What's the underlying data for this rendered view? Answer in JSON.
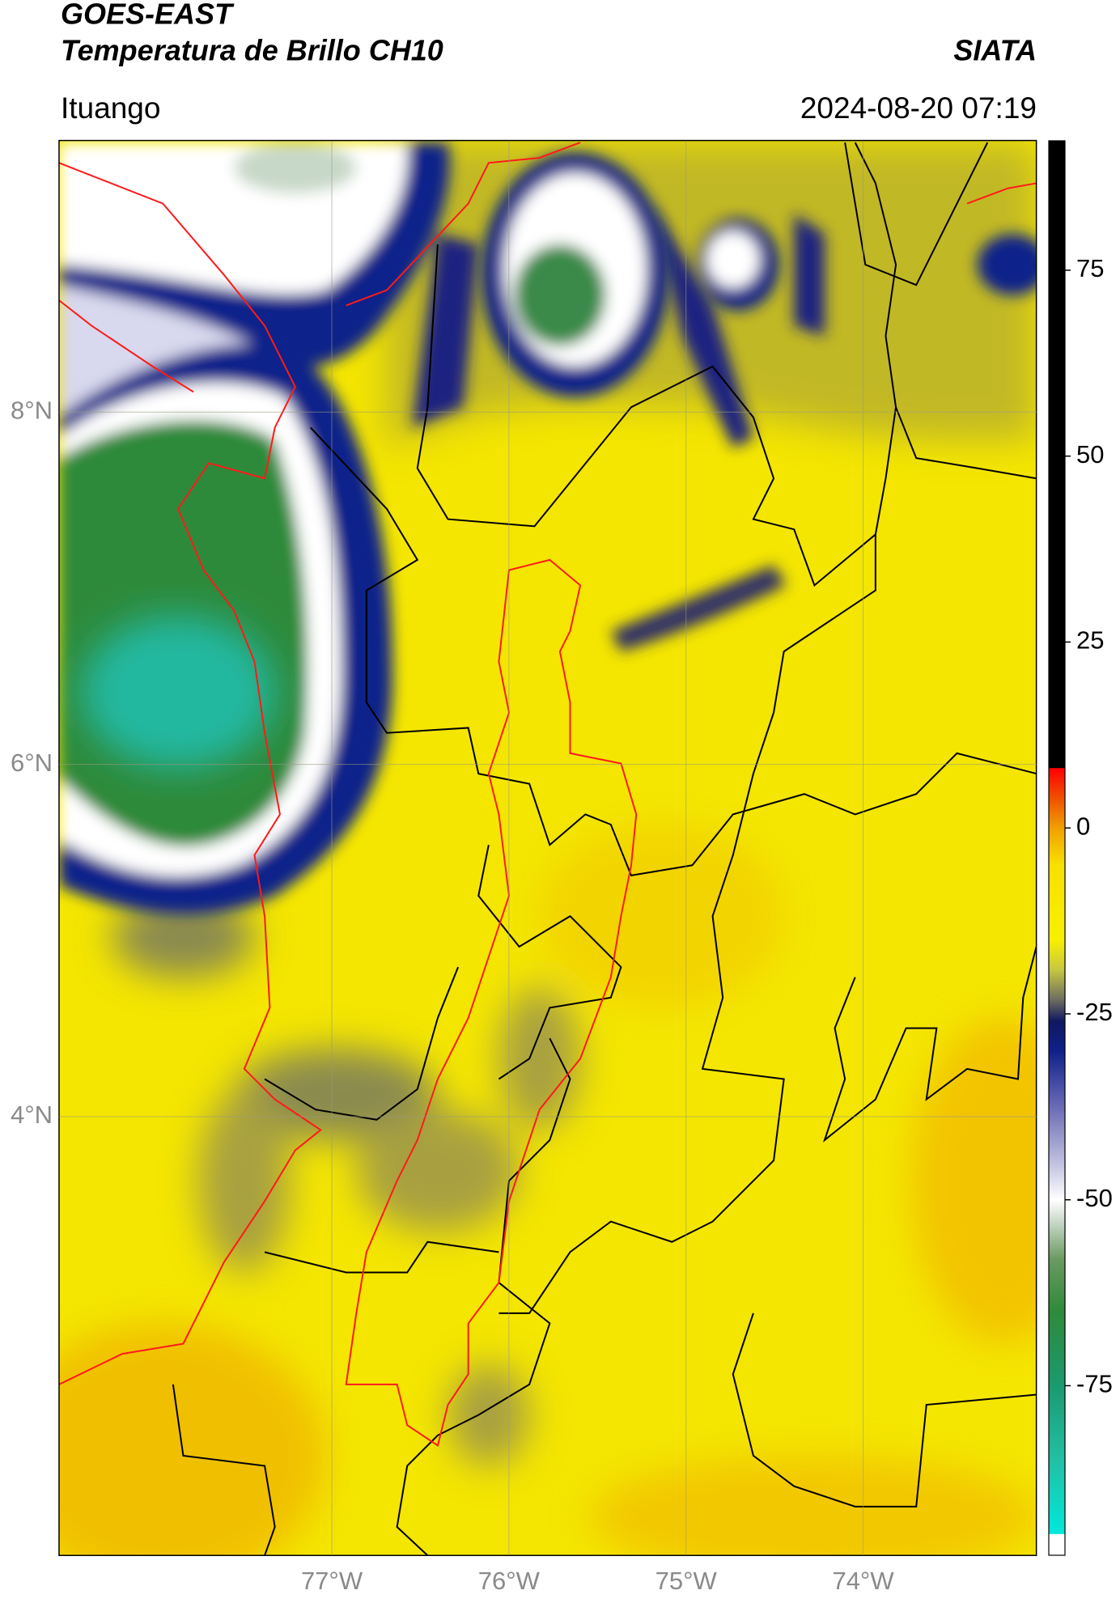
{
  "header": {
    "title": "GOES-EAST",
    "subtitle": "Temperatura de Brillo CH10",
    "source": "SIATA",
    "location": "Ituango",
    "timestamp": "2024-08-20 07:19"
  },
  "map": {
    "type": "map",
    "xlim": [
      -78.54,
      -73.02
    ],
    "ylim": [
      1.51,
      9.54
    ],
    "xticks": [
      {
        "value": -77,
        "label": "77°W"
      },
      {
        "value": -76,
        "label": "76°W"
      },
      {
        "value": -75,
        "label": "75°W"
      },
      {
        "value": -74,
        "label": "74°W"
      }
    ],
    "yticks": [
      {
        "value": 8,
        "label": "8°N"
      },
      {
        "value": 6,
        "label": "6°N"
      },
      {
        "value": 4,
        "label": "4°N"
      }
    ],
    "grid": true
  },
  "colorbar": {
    "ylim": [
      -97.8,
      92.4
    ],
    "yticks": [
      75,
      50,
      25,
      0,
      -25,
      -50,
      -75
    ],
    "stops": [
      {
        "value": -97.8,
        "color": "#ffffff"
      },
      {
        "value": -95,
        "color": "#ffffff"
      },
      {
        "value": -94.9,
        "color": "#00e8dc"
      },
      {
        "value": -85,
        "color": "#22c0a4"
      },
      {
        "value": -75,
        "color": "#1a9a70"
      },
      {
        "value": -65,
        "color": "#2f8a3a"
      },
      {
        "value": -58,
        "color": "#6a9a60"
      },
      {
        "value": -53,
        "color": "#c8d8c8"
      },
      {
        "value": -50,
        "color": "#ffffff"
      },
      {
        "value": -45,
        "color": "#c0c0e0"
      },
      {
        "value": -38,
        "color": "#7070b8"
      },
      {
        "value": -30,
        "color": "#10208a"
      },
      {
        "value": -26,
        "color": "#101860"
      },
      {
        "value": -23,
        "color": "#707060"
      },
      {
        "value": -19,
        "color": "#c8c840"
      },
      {
        "value": -15,
        "color": "#f8f000"
      },
      {
        "value": -5,
        "color": "#f8e000"
      },
      {
        "value": 0,
        "color": "#f0a000"
      },
      {
        "value": 4,
        "color": "#f05000"
      },
      {
        "value": 8,
        "color": "#ff0000"
      },
      {
        "value": 8.1,
        "color": "#000000"
      },
      {
        "value": 92.4,
        "color": "#000000"
      }
    ]
  }
}
